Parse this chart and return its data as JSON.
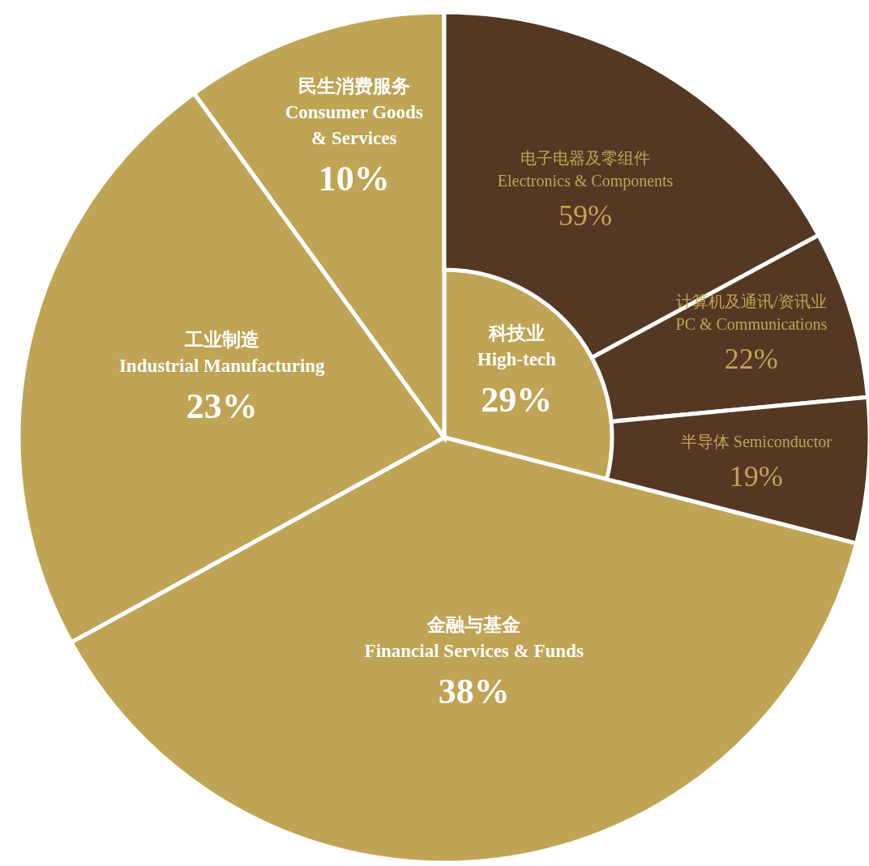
{
  "chart_data": [
    {
      "type": "pie",
      "categories": [
        "科技业\nHigh-tech",
        "金融与基金\nFinancial Services & Funds",
        "工业制造\nIndustrial Manufacturing",
        "民生消费服务\nConsumer Goods\n& Services"
      ],
      "values": [
        29,
        38,
        23,
        10
      ],
      "value_labels": [
        "29%",
        "38%",
        "23%",
        "10%"
      ],
      "colors": [
        "#c0a455",
        "#c0a455",
        "#c0a455",
        "#c0a455"
      ]
    },
    {
      "type": "donut",
      "categories": [
        "电子电器及零组件\nElectronics & Components",
        "计算机及通讯/资讯业\nPC & Communications",
        "半导体 Semiconductor"
      ],
      "values": [
        59,
        22,
        19
      ],
      "value_labels": [
        "59%",
        "22%",
        "19%"
      ],
      "colors": [
        "#553823",
        "#553823",
        "#553823"
      ]
    }
  ]
}
